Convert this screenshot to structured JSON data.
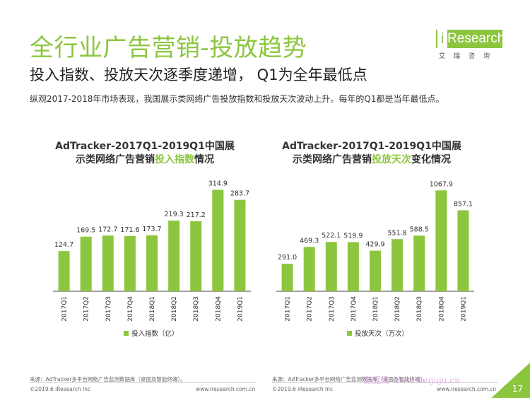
{
  "header": {
    "title": "全行业广告营销-投放趋势",
    "subtitle": "投入指数、投放天次逐季度递增， Q1为全年最低点",
    "description": "纵观2017-2018年市场表现，我国展示类网络广告投放指数和投放天次波动上升。每年的Q1都是当年最低点。"
  },
  "logo": {
    "brand": "Research",
    "i": "i",
    "sub": "艾瑞咨询"
  },
  "colors": {
    "accent": "#8cc63f",
    "axis": "#444444"
  },
  "chart_data": [
    {
      "type": "bar",
      "title_parts": [
        "AdTracker-2017Q1-2019Q1中国展",
        "示类网络广告营销",
        "投入指数",
        "情况"
      ],
      "categories": [
        "2017Q1",
        "2017Q2",
        "2017Q3",
        "2017Q4",
        "2018Q1",
        "2018Q2",
        "2018Q3",
        "2018Q4",
        "2019Q1"
      ],
      "series": [
        {
          "name": "投入指数（亿）",
          "values": [
            124.7,
            169.5,
            172.7,
            171.6,
            173.7,
            219.3,
            217.2,
            314.9,
            283.7
          ]
        }
      ],
      "ylim": [
        0,
        340
      ],
      "legend": "bottom"
    },
    {
      "type": "bar",
      "title_parts": [
        "AdTracker-2017Q1-2019Q1中国展",
        "示类网络广告营销",
        "投放天次",
        "变化情况"
      ],
      "categories": [
        "2017Q1",
        "2017Q2",
        "2017Q3",
        "2017Q4",
        "2018Q1",
        "2018Q2",
        "2018Q3",
        "2018Q4",
        "2019Q1"
      ],
      "series": [
        {
          "name": "投放天次（万次）",
          "values": [
            291.0,
            469.3,
            522.1,
            519.9,
            429.9,
            551.8,
            588.5,
            1067.9,
            857.1
          ]
        }
      ],
      "ylim": [
        0,
        1160
      ],
      "legend": "bottom"
    }
  ],
  "footer": {
    "source_left": "来源：AdTracker多平台网络广告监测数据库（桌面及智能终端）。",
    "source_right": "来源：AdTracker多平台网络广告监测数据库（桌面及智能终端）。",
    "copyright_left": "©2019.6 iResearch Inc",
    "url_left": "www.iresearch.com.cn",
    "copyright_right": "©2019.6 iResearch Inc",
    "url_right": "www.iresearch.com.cn",
    "page": "17",
    "watermark": "数据局 www.shujuju.cn"
  }
}
